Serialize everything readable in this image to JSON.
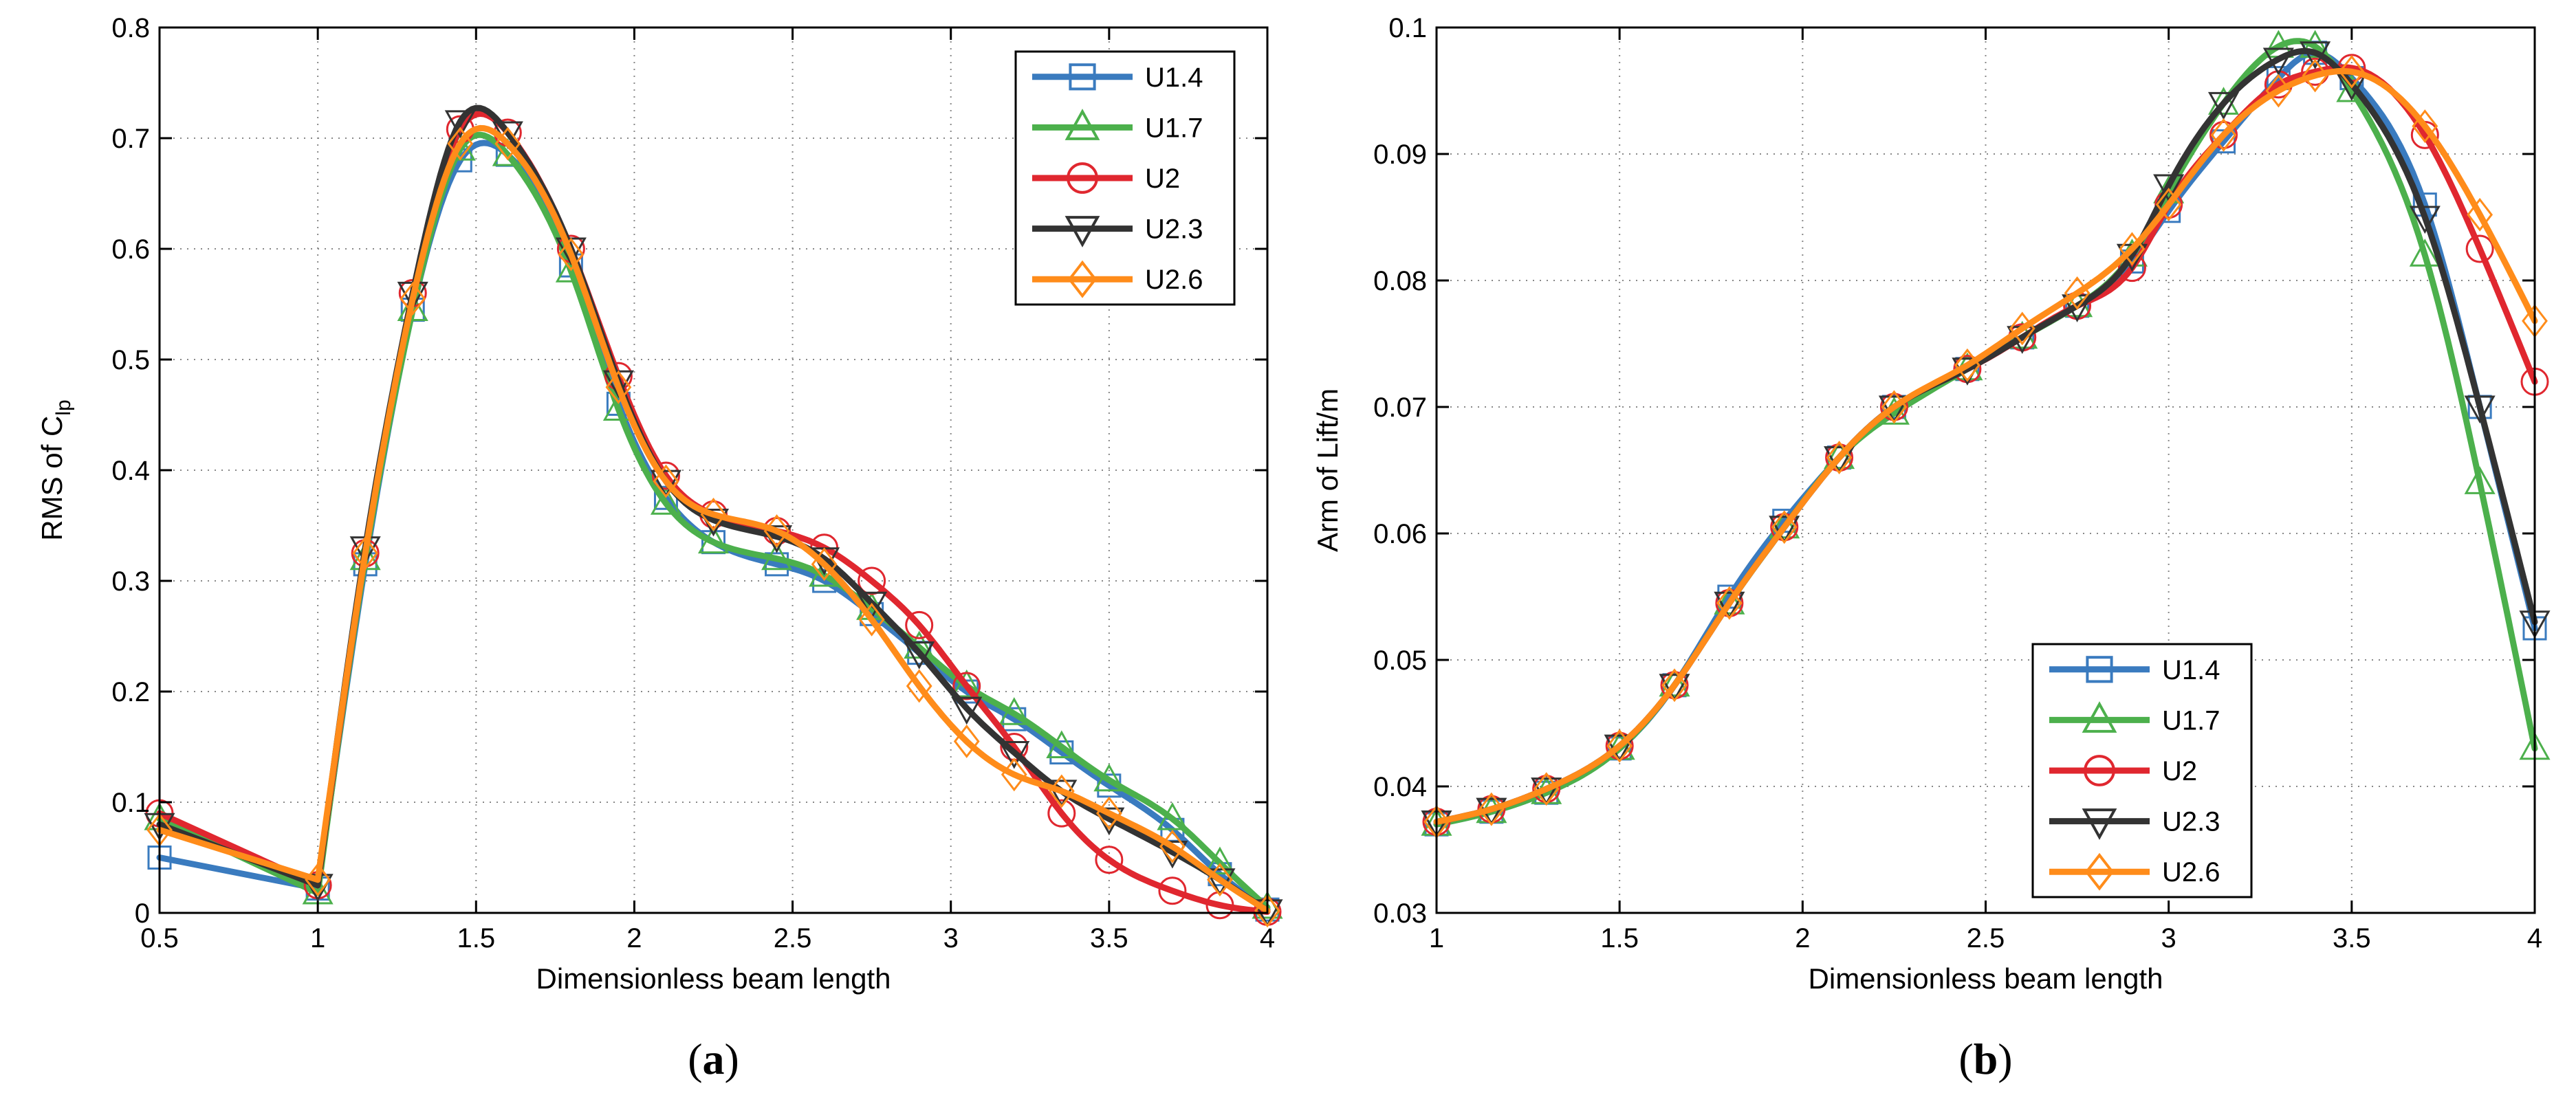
{
  "chart_data": [
    {
      "id": "a",
      "type": "line",
      "panel_label_open": "(",
      "panel_label_letter": "a",
      "panel_label_close": ")",
      "xlabel": "Dimensionless beam length",
      "ylabel_main": "RMS of C",
      "ylabel_sub": "lp",
      "xlim": [
        0.5,
        4
      ],
      "ylim": [
        0,
        0.8
      ],
      "xticks": [
        0.5,
        1,
        1.5,
        2,
        2.5,
        3,
        3.5,
        4
      ],
      "xtick_labels": [
        "0.5",
        "1",
        "1.5",
        "2",
        "2.5",
        "3",
        "3.5",
        "4"
      ],
      "yticks": [
        0,
        0.1,
        0.2,
        0.3,
        0.4,
        0.5,
        0.6,
        0.7,
        0.8
      ],
      "ytick_labels": [
        "0",
        "0.1",
        "0.2",
        "0.3",
        "0.4",
        "0.5",
        "0.6",
        "0.7",
        "0.8"
      ],
      "grid": true,
      "legend_position": "top-right",
      "segment_break_x": 1,
      "series": [
        {
          "name": "U1.4",
          "marker": "square",
          "color": "#3a7bbf",
          "x": [
            0.5,
            1,
            1.15,
            1.3,
            1.45,
            1.6,
            1.8,
            1.95,
            2.1,
            2.25,
            2.45,
            2.6,
            2.75,
            2.9,
            3.05,
            3.2,
            3.35,
            3.5,
            3.7,
            3.85,
            4
          ],
          "y": [
            0.05,
            0.022,
            0.315,
            0.545,
            0.68,
            0.685,
            0.585,
            0.46,
            0.375,
            0.335,
            0.315,
            0.3,
            0.27,
            0.235,
            0.2,
            0.175,
            0.145,
            0.115,
            0.075,
            0.035,
            0.003
          ]
        },
        {
          "name": "U1.7",
          "marker": "triangle-up",
          "color": "#4cb04c",
          "x": [
            0.5,
            1,
            1.15,
            1.3,
            1.45,
            1.6,
            1.8,
            1.95,
            2.1,
            2.25,
            2.45,
            2.6,
            2.75,
            2.9,
            3.05,
            3.2,
            3.35,
            3.5,
            3.7,
            3.85,
            4
          ],
          "y": [
            0.085,
            0.018,
            0.32,
            0.545,
            0.69,
            0.685,
            0.58,
            0.455,
            0.37,
            0.335,
            0.32,
            0.305,
            0.275,
            0.24,
            0.205,
            0.18,
            0.15,
            0.12,
            0.085,
            0.045,
            0.005
          ]
        },
        {
          "name": "U2",
          "marker": "circle",
          "color": "#e0272f",
          "x": [
            0.5,
            1,
            1.15,
            1.3,
            1.45,
            1.6,
            1.8,
            1.95,
            2.1,
            2.25,
            2.45,
            2.6,
            2.75,
            2.9,
            3.05,
            3.2,
            3.35,
            3.5,
            3.7,
            3.85,
            4
          ],
          "y": [
            0.09,
            0.025,
            0.325,
            0.56,
            0.708,
            0.705,
            0.6,
            0.485,
            0.395,
            0.36,
            0.345,
            0.33,
            0.3,
            0.26,
            0.205,
            0.15,
            0.09,
            0.048,
            0.02,
            0.007,
            0.001
          ]
        },
        {
          "name": "U2.3",
          "marker": "triangle-down",
          "color": "#333333",
          "x": [
            0.5,
            1,
            1.15,
            1.3,
            1.45,
            1.6,
            1.8,
            1.95,
            2.1,
            2.25,
            2.45,
            2.6,
            2.75,
            2.9,
            3.05,
            3.2,
            3.35,
            3.5,
            3.7,
            3.85,
            4
          ],
          "y": [
            0.08,
            0.025,
            0.33,
            0.56,
            0.715,
            0.705,
            0.6,
            0.48,
            0.39,
            0.355,
            0.34,
            0.32,
            0.28,
            0.235,
            0.185,
            0.145,
            0.11,
            0.085,
            0.055,
            0.03,
            0.002
          ]
        },
        {
          "name": "U2.6",
          "marker": "diamond",
          "color": "#ff8c1a",
          "x": [
            0.5,
            1,
            1.15,
            1.3,
            1.45,
            1.6,
            1.8,
            1.95,
            2.1,
            2.25,
            2.45,
            2.6,
            2.75,
            2.9,
            3.05,
            3.2,
            3.35,
            3.5,
            3.7,
            3.85,
            4
          ],
          "y": [
            0.075,
            0.03,
            0.325,
            0.555,
            0.695,
            0.695,
            0.595,
            0.475,
            0.39,
            0.36,
            0.345,
            0.315,
            0.265,
            0.205,
            0.155,
            0.125,
            0.11,
            0.09,
            0.06,
            0.03,
            0.002
          ]
        }
      ]
    },
    {
      "id": "b",
      "type": "line",
      "panel_label_open": "(",
      "panel_label_letter": "b",
      "panel_label_close": ")",
      "xlabel": "Dimensionless beam length",
      "ylabel_main": "Arm of Lift/m",
      "ylabel_sub": "",
      "xlim": [
        1,
        4
      ],
      "ylim": [
        0.03,
        0.1
      ],
      "xticks": [
        1,
        1.5,
        2,
        2.5,
        3,
        3.5,
        4
      ],
      "xtick_labels": [
        "1",
        "1.5",
        "2",
        "2.5",
        "3",
        "3.5",
        "4"
      ],
      "yticks": [
        0.03,
        0.04,
        0.05,
        0.06,
        0.07,
        0.08,
        0.09,
        0.1
      ],
      "ytick_labels": [
        "0.03",
        "0.04",
        "0.05",
        "0.06",
        "0.07",
        "0.08",
        "0.09",
        "0.1"
      ],
      "grid": true,
      "legend_position": "bottom-right",
      "segment_break_x": null,
      "series": [
        {
          "name": "U1.4",
          "marker": "square",
          "color": "#3a7bbf",
          "x": [
            1,
            1.15,
            1.3,
            1.5,
            1.65,
            1.8,
            1.95,
            2.1,
            2.25,
            2.45,
            2.6,
            2.75,
            2.9,
            3.0,
            3.15,
            3.3,
            3.4,
            3.5,
            3.7,
            3.85,
            4
          ],
          "y": [
            0.037,
            0.038,
            0.0395,
            0.043,
            0.048,
            0.055,
            0.061,
            0.066,
            0.07,
            0.073,
            0.0755,
            0.078,
            0.0815,
            0.0855,
            0.091,
            0.096,
            0.098,
            0.096,
            0.086,
            0.07,
            0.0525
          ]
        },
        {
          "name": "U1.7",
          "marker": "triangle-up",
          "color": "#4cb04c",
          "x": [
            1,
            1.15,
            1.3,
            1.5,
            1.65,
            1.8,
            1.95,
            2.1,
            2.25,
            2.45,
            2.6,
            2.75,
            2.9,
            3.0,
            3.15,
            3.3,
            3.4,
            3.5,
            3.7,
            3.85,
            4
          ],
          "y": [
            0.037,
            0.038,
            0.0395,
            0.043,
            0.048,
            0.0545,
            0.0605,
            0.066,
            0.0695,
            0.073,
            0.0755,
            0.078,
            0.082,
            0.087,
            0.094,
            0.0985,
            0.0985,
            0.095,
            0.082,
            0.064,
            0.043
          ]
        },
        {
          "name": "U2",
          "marker": "circle",
          "color": "#e0272f",
          "x": [
            1,
            1.15,
            1.3,
            1.5,
            1.65,
            1.8,
            1.95,
            2.1,
            2.25,
            2.45,
            2.6,
            2.75,
            2.9,
            3.0,
            3.15,
            3.3,
            3.4,
            3.5,
            3.7,
            3.85,
            4
          ],
          "y": [
            0.0372,
            0.0382,
            0.0398,
            0.0432,
            0.048,
            0.0545,
            0.0605,
            0.066,
            0.07,
            0.073,
            0.0755,
            0.078,
            0.081,
            0.086,
            0.0915,
            0.0955,
            0.0965,
            0.0968,
            0.0915,
            0.0825,
            0.072
          ]
        },
        {
          "name": "U2.3",
          "marker": "triangle-down",
          "color": "#333333",
          "x": [
            1,
            1.15,
            1.3,
            1.5,
            1.65,
            1.8,
            1.95,
            2.1,
            2.25,
            2.45,
            2.6,
            2.75,
            2.9,
            3.0,
            3.15,
            3.3,
            3.4,
            3.5,
            3.7,
            3.85,
            4
          ],
          "y": [
            0.0372,
            0.0382,
            0.0398,
            0.0432,
            0.048,
            0.0545,
            0.0605,
            0.066,
            0.07,
            0.073,
            0.0755,
            0.078,
            0.082,
            0.0875,
            0.094,
            0.0975,
            0.098,
            0.0955,
            0.085,
            0.07,
            0.053
          ]
        },
        {
          "name": "U2.6",
          "marker": "diamond",
          "color": "#ff8c1a",
          "x": [
            1,
            1.15,
            1.3,
            1.5,
            1.65,
            1.8,
            1.95,
            2.1,
            2.25,
            2.45,
            2.6,
            2.75,
            2.9,
            3.0,
            3.15,
            3.3,
            3.4,
            3.5,
            3.7,
            3.85,
            4
          ],
          "y": [
            0.0372,
            0.0382,
            0.0398,
            0.0432,
            0.048,
            0.0545,
            0.0605,
            0.066,
            0.07,
            0.0733,
            0.0762,
            0.079,
            0.0825,
            0.086,
            0.0915,
            0.095,
            0.0962,
            0.0965,
            0.0922,
            0.0852,
            0.0768
          ]
        }
      ]
    }
  ]
}
